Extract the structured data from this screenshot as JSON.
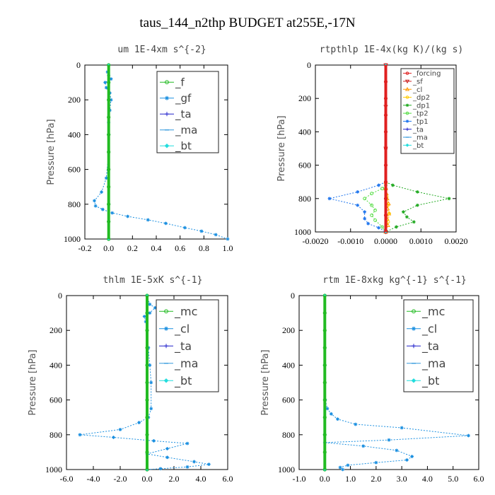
{
  "title": "taus_144_n2thp  BUDGET at255E,-17N",
  "chart_data": [
    {
      "type": "line",
      "title": "um   1E-4xm s^{-2}",
      "ylabel": "Pressure [hPa]",
      "xlim": [
        -0.2,
        1.0
      ],
      "ylim": [
        1000,
        0
      ],
      "xticks": [
        "-0.2",
        "0.0",
        "0.2",
        "0.4",
        "0.6",
        "0.8",
        "1.0"
      ],
      "yticks": [
        "0",
        "200",
        "400",
        "600",
        "800",
        "1000"
      ],
      "legend_location": "upper-right",
      "series": [
        {
          "name": "_f",
          "color": "#22bb22",
          "marker": "circle",
          "x": [
            0,
            0,
            0,
            0,
            0,
            0,
            0,
            0,
            0,
            0,
            0
          ],
          "y": [
            0,
            100,
            200,
            300,
            400,
            500,
            600,
            700,
            800,
            900,
            1000
          ]
        },
        {
          "name": "_gf",
          "color": "#1a8fe0",
          "marker": "star",
          "x": [
            0.0,
            -0.01,
            0.0,
            0.02,
            -0.03,
            -0.02,
            0.01,
            0.02,
            0.01,
            0.0,
            0.0,
            0.0,
            -0.02,
            -0.06,
            -0.12,
            -0.11,
            -0.05,
            0.03,
            0.16,
            0.33,
            0.48,
            0.64,
            0.78,
            0.9,
            1.0
          ],
          "y": [
            0,
            40,
            60,
            80,
            100,
            130,
            160,
            200,
            260,
            330,
            400,
            500,
            650,
            730,
            780,
            810,
            830,
            850,
            870,
            890,
            910,
            935,
            955,
            975,
            1000
          ]
        },
        {
          "name": "_ta",
          "color": "#2222cc",
          "marker": "plus",
          "x": [
            0,
            0,
            0,
            0,
            0,
            0,
            0
          ],
          "y": [
            0,
            200,
            400,
            600,
            800,
            900,
            1000
          ]
        },
        {
          "name": "_ma",
          "color": "#3399dd",
          "marker": "dash",
          "x": [
            0,
            0,
            0,
            0
          ],
          "y": [
            0,
            400,
            800,
            1000
          ]
        },
        {
          "name": "_bt",
          "color": "#22dddd",
          "marker": "diamond",
          "x": [
            0,
            0,
            0,
            0
          ],
          "y": [
            0,
            400,
            800,
            1000
          ]
        }
      ]
    },
    {
      "type": "line",
      "title": "rtpthlp   1E-4x(kg K)/(kg s)",
      "ylabel": "Pressure [hPa]",
      "xlim": [
        -0.002,
        0.002
      ],
      "ylim": [
        1000,
        0
      ],
      "xticks": [
        "-0.0020",
        "-0.0010",
        "0.0000",
        "0.0010",
        "0.0020"
      ],
      "yticks": [
        "0",
        "200",
        "400",
        "600",
        "800",
        "1000"
      ],
      "legend_location": "upper-right",
      "series": [
        {
          "name": "_forcing",
          "color": "#e02020",
          "marker": "circle",
          "x": [
            0,
            0,
            0,
            0,
            0,
            0,
            0,
            0,
            0,
            0,
            0
          ],
          "y": [
            0,
            100,
            200,
            300,
            400,
            500,
            600,
            700,
            800,
            900,
            1000
          ]
        },
        {
          "name": "_sf",
          "color": "#cc2222",
          "marker": "triangle-down",
          "x": [
            0,
            0,
            0,
            0,
            0
          ],
          "y": [
            0,
            250,
            500,
            750,
            1000
          ]
        },
        {
          "name": "_cl",
          "color": "#ff9900",
          "marker": "triangle",
          "x": [
            0.0,
            0.0,
            2e-05,
            4e-05,
            8e-05,
            5e-05,
            9e-05,
            4e-05,
            6e-05,
            0.0
          ],
          "y": [
            700,
            740,
            770,
            800,
            830,
            860,
            890,
            920,
            960,
            1000
          ]
        },
        {
          "name": "_dp2",
          "color": "#ffcc00",
          "marker": "circle",
          "x": [
            0.0,
            3e-05,
            6e-05,
            0.0001,
            7e-05,
            0.0
          ],
          "y": [
            740,
            790,
            840,
            890,
            940,
            1000
          ]
        },
        {
          "name": "_dp1",
          "color": "#22aa22",
          "marker": "star",
          "x": [
            0.0,
            0.0002,
            0.0009,
            0.0018,
            0.0009,
            0.0005,
            0.0006,
            0.0008,
            0.0003,
            0.0
          ],
          "y": [
            700,
            720,
            760,
            800,
            840,
            880,
            910,
            940,
            970,
            1000
          ]
        },
        {
          "name": "_tp2",
          "color": "#55dd44",
          "marker": "circle",
          "x": [
            0.0,
            -0.0001,
            -0.0004,
            -0.0006,
            -0.0004,
            -0.0003,
            -0.0004,
            -0.0003,
            -0.0001,
            0.0
          ],
          "y": [
            720,
            740,
            770,
            800,
            840,
            870,
            900,
            930,
            970,
            1000
          ]
        },
        {
          "name": "_tp1",
          "color": "#2277ee",
          "marker": "star",
          "x": [
            0.0,
            -0.0002,
            -0.0008,
            -0.0016,
            -0.0008,
            -0.0006,
            -0.0006,
            -0.0005,
            -0.0002,
            0.0
          ],
          "y": [
            700,
            720,
            760,
            800,
            840,
            880,
            920,
            950,
            975,
            1000
          ]
        },
        {
          "name": "_ta",
          "color": "#2222cc",
          "marker": "plus",
          "x": [
            0,
            0,
            0,
            0
          ],
          "y": [
            0,
            400,
            800,
            1000
          ]
        },
        {
          "name": "_ma",
          "color": "#3399dd",
          "marker": "dash",
          "x": [
            0,
            0,
            0,
            0
          ],
          "y": [
            0,
            400,
            800,
            1000
          ]
        },
        {
          "name": "_bt",
          "color": "#22dddd",
          "marker": "diamond",
          "x": [
            0,
            0,
            0,
            0
          ],
          "y": [
            0,
            400,
            800,
            1000
          ]
        }
      ]
    },
    {
      "type": "line",
      "title": "thlm   1E-5xK s^{-1}",
      "ylabel": "Pressure [hPa]",
      "xlim": [
        -6.0,
        6.0
      ],
      "ylim": [
        1000,
        0
      ],
      "xticks": [
        "-6.0",
        "-4.0",
        "-2.0",
        "0.0",
        "2.0",
        "4.0",
        "6.0"
      ],
      "yticks": [
        "0",
        "200",
        "400",
        "600",
        "800",
        "1000"
      ],
      "legend_location": "upper-right",
      "series": [
        {
          "name": "_mc",
          "color": "#22bb22",
          "marker": "circle",
          "x": [
            0,
            0,
            0,
            0,
            0,
            0,
            0,
            0,
            0,
            0,
            0
          ],
          "y": [
            0,
            100,
            200,
            300,
            400,
            500,
            600,
            700,
            800,
            900,
            1000
          ]
        },
        {
          "name": "_cl",
          "color": "#1a8fe0",
          "marker": "star",
          "x": [
            0.0,
            0.2,
            0.6,
            0.2,
            -0.2,
            -0.1,
            0.0,
            0.1,
            0.2,
            0.3,
            0.3,
            0.1,
            -0.6,
            -2.0,
            -5.0,
            -2.5,
            0.5,
            3.0,
            1.5,
            0.0,
            1.5,
            3.5,
            4.6,
            3.0,
            1.0,
            0.0
          ],
          "y": [
            0,
            50,
            70,
            100,
            120,
            150,
            200,
            300,
            400,
            500,
            650,
            700,
            730,
            770,
            800,
            815,
            835,
            850,
            880,
            910,
            930,
            955,
            970,
            985,
            995,
            1000
          ]
        },
        {
          "name": "_ta",
          "color": "#2222cc",
          "marker": "plus",
          "x": [
            0,
            0,
            0,
            0
          ],
          "y": [
            0,
            400,
            800,
            1000
          ]
        },
        {
          "name": "_ma",
          "color": "#3399dd",
          "marker": "dash",
          "x": [
            0,
            0,
            0,
            0
          ],
          "y": [
            0,
            400,
            800,
            1000
          ]
        },
        {
          "name": "_bt",
          "color": "#22dddd",
          "marker": "diamond",
          "x": [
            0,
            0,
            0,
            0
          ],
          "y": [
            0,
            400,
            800,
            1000
          ]
        }
      ]
    },
    {
      "type": "line",
      "title": "rtm   1E-8xkg kg^{-1} s^{-1}",
      "ylabel": "Pressure [hPa]",
      "xlim": [
        -1.0,
        6.0
      ],
      "ylim": [
        1000,
        0
      ],
      "xticks": [
        "-1.0",
        "0.0",
        "1.0",
        "2.0",
        "3.0",
        "4.0",
        "5.0",
        "6.0"
      ],
      "yticks": [
        "0",
        "200",
        "400",
        "600",
        "800",
        "1000"
      ],
      "legend_location": "upper-right",
      "series": [
        {
          "name": "_mc",
          "color": "#22bb22",
          "marker": "circle",
          "x": [
            0,
            0,
            0,
            0,
            0,
            0,
            0,
            0,
            0,
            0,
            0
          ],
          "y": [
            0,
            100,
            200,
            300,
            400,
            500,
            600,
            700,
            800,
            900,
            1000
          ]
        },
        {
          "name": "_cl",
          "color": "#1a8fe0",
          "marker": "star",
          "x": [
            0.0,
            0.0,
            0.02,
            0.1,
            0.25,
            0.5,
            1.2,
            3.0,
            5.6,
            2.5,
            0.0,
            1.5,
            2.8,
            3.4,
            3.2,
            2.0,
            0.9,
            0.6,
            0.7
          ],
          "y": [
            0,
            300,
            600,
            650,
            680,
            710,
            740,
            760,
            805,
            830,
            845,
            865,
            890,
            925,
            945,
            960,
            975,
            988,
            1000
          ]
        },
        {
          "name": "_ta",
          "color": "#2222cc",
          "marker": "plus",
          "x": [
            0,
            0,
            0,
            0
          ],
          "y": [
            0,
            400,
            800,
            1000
          ]
        },
        {
          "name": "_ma",
          "color": "#3399dd",
          "marker": "dash",
          "x": [
            0,
            0,
            0,
            0
          ],
          "y": [
            0,
            400,
            800,
            1000
          ]
        },
        {
          "name": "_bt",
          "color": "#22dddd",
          "marker": "diamond",
          "x": [
            0,
            0,
            0,
            0
          ],
          "y": [
            0,
            400,
            800,
            1000
          ]
        }
      ]
    }
  ]
}
